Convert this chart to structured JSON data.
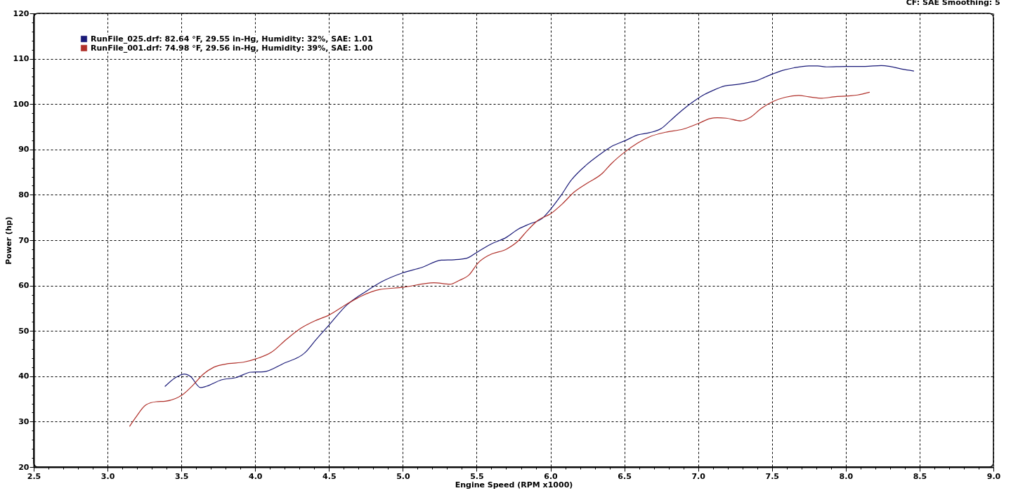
{
  "chart_data": {
    "type": "line",
    "xlabel": "Engine Speed (RPM x1000)",
    "ylabel": "Power (hp)",
    "annotations": [
      "CF: SAE  Smoothing: 5"
    ],
    "xlim": [
      2.5,
      9.0
    ],
    "ylim": [
      20,
      120
    ],
    "xticks": [
      2.5,
      {
        "value": 2.6,
        "label": null
      },
      {
        "value": 2.7,
        "label": null
      },
      {
        "value": 2.8,
        "label": null
      },
      {
        "value": 2.9,
        "label": null
      },
      {
        "value": 3,
        "label": "3.0"
      },
      {
        "value": 3.1,
        "label": null
      },
      {
        "value": 3.2,
        "label": null
      },
      {
        "value": 3.3,
        "label": null
      },
      {
        "value": 3.4,
        "label": null
      },
      3.5,
      {
        "value": 3.6,
        "label": null
      },
      {
        "value": 3.7,
        "label": null
      },
      {
        "value": 3.8,
        "label": null
      },
      {
        "value": 3.9,
        "label": null
      },
      {
        "value": 4,
        "label": "4.0"
      },
      {
        "value": 4.1,
        "label": null
      },
      {
        "value": 4.2,
        "label": null
      },
      {
        "value": 4.3,
        "label": null
      },
      {
        "value": 4.4,
        "label": null
      },
      4.5,
      {
        "value": 4.6,
        "label": null
      },
      {
        "value": 4.7,
        "label": null
      },
      {
        "value": 4.8,
        "label": null
      },
      {
        "value": 4.9,
        "label": null
      },
      {
        "value": 5,
        "label": "5.0"
      },
      {
        "value": 5.1,
        "label": null
      },
      {
        "value": 5.2,
        "label": null
      },
      {
        "value": 5.3,
        "label": null
      },
      {
        "value": 5.4,
        "label": null
      },
      5.5,
      {
        "value": 5.6,
        "label": null
      },
      {
        "value": 5.7,
        "label": null
      },
      {
        "value": 5.8,
        "label": null
      },
      {
        "value": 5.9,
        "label": null
      },
      {
        "value": 6,
        "label": "6.0"
      },
      {
        "value": 6.1,
        "label": null
      },
      {
        "value": 6.2,
        "label": null
      },
      {
        "value": 6.3,
        "label": null
      },
      {
        "value": 6.4,
        "label": null
      },
      6.5,
      {
        "value": 6.6,
        "label": null
      },
      {
        "value": 6.7,
        "label": null
      },
      {
        "value": 6.8,
        "label": null
      },
      {
        "value": 6.9,
        "label": null
      },
      {
        "value": 7,
        "label": "7.0"
      },
      {
        "value": 7.1,
        "label": null
      },
      {
        "value": 7.2,
        "label": null
      },
      {
        "value": 7.3,
        "label": null
      },
      {
        "value": 7.4,
        "label": null
      },
      7.5,
      {
        "value": 7.6,
        "label": null
      },
      {
        "value": 7.7,
        "label": null
      },
      {
        "value": 7.8,
        "label": null
      },
      {
        "value": 7.9,
        "label": null
      },
      {
        "value": 8,
        "label": "8.0"
      },
      {
        "value": 8.1,
        "label": null
      },
      {
        "value": 8.2,
        "label": null
      },
      {
        "value": 8.3,
        "label": null
      },
      {
        "value": 8.4,
        "label": null
      },
      8.5,
      {
        "value": 8.6,
        "label": null
      },
      {
        "value": 8.7,
        "label": null
      },
      {
        "value": 8.8,
        "label": null
      },
      {
        "value": 8.9,
        "label": null
      },
      {
        "value": 9,
        "label": "9.0"
      }
    ],
    "yticks": [
      20,
      {
        "value": 22,
        "label": null
      },
      {
        "value": 24,
        "label": null
      },
      {
        "value": 26,
        "label": null
      },
      {
        "value": 28,
        "label": null
      },
      30,
      {
        "value": 32,
        "label": null
      },
      {
        "value": 34,
        "label": null
      },
      {
        "value": 36,
        "label": null
      },
      {
        "value": 38,
        "label": null
      },
      40,
      {
        "value": 42,
        "label": null
      },
      {
        "value": 44,
        "label": null
      },
      {
        "value": 46,
        "label": null
      },
      {
        "value": 48,
        "label": null
      },
      50,
      {
        "value": 52,
        "label": null
      },
      {
        "value": 54,
        "label": null
      },
      {
        "value": 56,
        "label": null
      },
      {
        "value": 58,
        "label": null
      },
      60,
      {
        "value": 62,
        "label": null
      },
      {
        "value": 64,
        "label": null
      },
      {
        "value": 66,
        "label": null
      },
      {
        "value": 68,
        "label": null
      },
      70,
      {
        "value": 72,
        "label": null
      },
      {
        "value": 74,
        "label": null
      },
      {
        "value": 76,
        "label": null
      },
      {
        "value": 78,
        "label": null
      },
      80,
      {
        "value": 82,
        "label": null
      },
      {
        "value": 84,
        "label": null
      },
      {
        "value": 86,
        "label": null
      },
      {
        "value": 88,
        "label": null
      },
      90,
      {
        "value": 92,
        "label": null
      },
      {
        "value": 94,
        "label": null
      },
      {
        "value": 96,
        "label": null
      },
      {
        "value": 98,
        "label": null
      },
      100,
      {
        "value": 102,
        "label": null
      },
      {
        "value": 104,
        "label": null
      },
      {
        "value": 106,
        "label": null
      },
      {
        "value": 108,
        "label": null
      },
      110,
      {
        "value": 112,
        "label": null
      },
      {
        "value": 114,
        "label": null
      },
      {
        "value": 116,
        "label": null
      },
      {
        "value": 118,
        "label": null
      },
      120
    ],
    "grid": true,
    "legend": "top left",
    "series": [
      {
        "name": "RunFile_025.drf: 82.64 °F, 29.55 in-Hg, Humidity: 32%, SAE: 1.01",
        "color": "#1a1a78",
        "x": [
          3.39,
          3.46,
          3.52,
          3.56,
          3.63,
          3.67,
          3.77,
          3.87,
          3.97,
          4.06,
          4.19,
          4.34,
          4.41,
          4.5,
          4.62,
          4.75,
          4.86,
          5.0,
          5.13,
          5.26,
          5.35,
          5.43,
          5.51,
          5.6,
          5.7,
          5.78,
          5.86,
          5.94,
          6.0,
          6.07,
          6.14,
          6.24,
          6.33,
          6.41,
          6.51,
          6.59,
          6.67,
          6.75,
          6.81,
          6.89,
          6.97,
          7.03,
          7.1,
          7.18,
          7.26,
          7.33,
          7.4,
          7.45,
          7.51,
          7.57,
          7.65,
          7.75,
          7.81,
          7.87,
          8.0,
          8.13,
          8.24,
          8.3,
          8.38,
          8.46
        ],
        "values": [
          37.8,
          39.7,
          40.5,
          40.0,
          37.5,
          37.8,
          39.2,
          39.7,
          40.9,
          41.0,
          42.8,
          45.3,
          48.0,
          51.3,
          55.7,
          58.7,
          60.9,
          62.8,
          64.0,
          65.6,
          65.7,
          66.0,
          67.5,
          69.2,
          70.6,
          72.4,
          73.6,
          74.7,
          76.8,
          79.8,
          83.2,
          86.5,
          88.8,
          90.6,
          92.0,
          93.2,
          93.7,
          94.6,
          96.3,
          98.6,
          100.6,
          101.9,
          103.0,
          104.0,
          104.3,
          104.7,
          105.2,
          105.9,
          106.7,
          107.4,
          108.0,
          108.4,
          108.4,
          108.2,
          108.3,
          108.3,
          108.5,
          108.3,
          107.7,
          107.3
        ]
      },
      {
        "name": "RunFile_001.drf: 74.98 °F, 29.56 in-Hg, Humidity: 39%, SAE: 1.00",
        "color": "#b0302a",
        "x": [
          3.15,
          3.19,
          3.26,
          3.33,
          3.39,
          3.46,
          3.51,
          3.58,
          3.65,
          3.72,
          3.82,
          3.92,
          4.01,
          4.11,
          4.21,
          4.31,
          4.41,
          4.5,
          4.62,
          4.72,
          4.84,
          5.0,
          5.21,
          5.32,
          5.38,
          5.45,
          5.51,
          5.59,
          5.7,
          5.78,
          5.84,
          5.92,
          6.0,
          6.08,
          6.16,
          6.24,
          6.35,
          6.41,
          6.51,
          6.59,
          6.68,
          6.78,
          6.9,
          7.0,
          7.08,
          7.13,
          7.19,
          7.29,
          7.35,
          7.43,
          7.51,
          7.59,
          7.68,
          7.75,
          7.84,
          7.92,
          8.02,
          8.08,
          8.16
        ],
        "values": [
          29.0,
          30.9,
          33.7,
          34.4,
          34.5,
          35.1,
          36.0,
          38.1,
          40.5,
          42.0,
          42.8,
          43.1,
          43.9,
          45.3,
          48.1,
          50.6,
          52.3,
          53.5,
          55.9,
          57.7,
          59.1,
          59.6,
          60.6,
          60.3,
          61.1,
          62.4,
          65.0,
          66.8,
          68.0,
          69.8,
          72.0,
          74.5,
          75.8,
          78.0,
          80.6,
          82.4,
          84.7,
          86.8,
          89.6,
          91.4,
          92.9,
          93.8,
          94.5,
          95.7,
          96.8,
          97.0,
          96.9,
          96.3,
          97.0,
          99.1,
          100.6,
          101.5,
          101.9,
          101.6,
          101.3,
          101.6,
          101.8,
          102.0,
          102.6
        ]
      }
    ]
  }
}
